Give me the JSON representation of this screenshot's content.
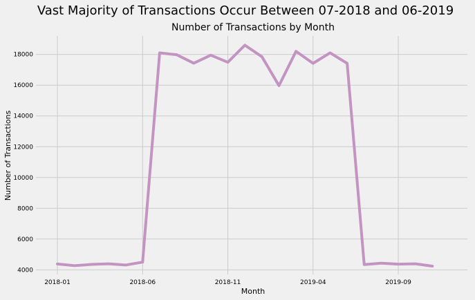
{
  "chart_data": {
    "type": "line",
    "suptitle": "Vast Majority of Transactions Occur Between 07-2018 and 06-2019",
    "title": "Number of Transactions by Month",
    "xlabel": "Month",
    "ylabel": "Number of Transactions",
    "x": [
      "2018-01",
      "2018-02",
      "2018-03",
      "2018-04",
      "2018-05",
      "2018-06",
      "2018-07",
      "2018-08",
      "2018-09",
      "2018-10",
      "2018-11",
      "2018-12",
      "2019-01",
      "2019-02",
      "2019-03",
      "2019-04",
      "2019-05",
      "2019-06",
      "2019-07",
      "2019-08",
      "2019-09",
      "2019-10",
      "2019-11",
      "2019-12"
    ],
    "series": [
      {
        "color": "#c394c1",
        "values": [
          4380,
          4270,
          4350,
          4390,
          4310,
          4500,
          18100,
          17980,
          17430,
          17950,
          17490,
          18600,
          17850,
          15970,
          18200,
          17420,
          18100,
          17420,
          4340,
          4430,
          4370,
          4390,
          4240,
          4470
        ]
      }
    ],
    "xticks": [
      "2018-01",
      "2018-06",
      "2018-11",
      "2019-04",
      "2019-09"
    ],
    "yticks": [
      4000,
      6000,
      8000,
      10000,
      12000,
      14000,
      16000,
      18000
    ],
    "ylim": [
      3700,
      19200
    ],
    "grid": true,
    "background": "#f0f0f0",
    "grid_color": "#cbcbcb"
  }
}
